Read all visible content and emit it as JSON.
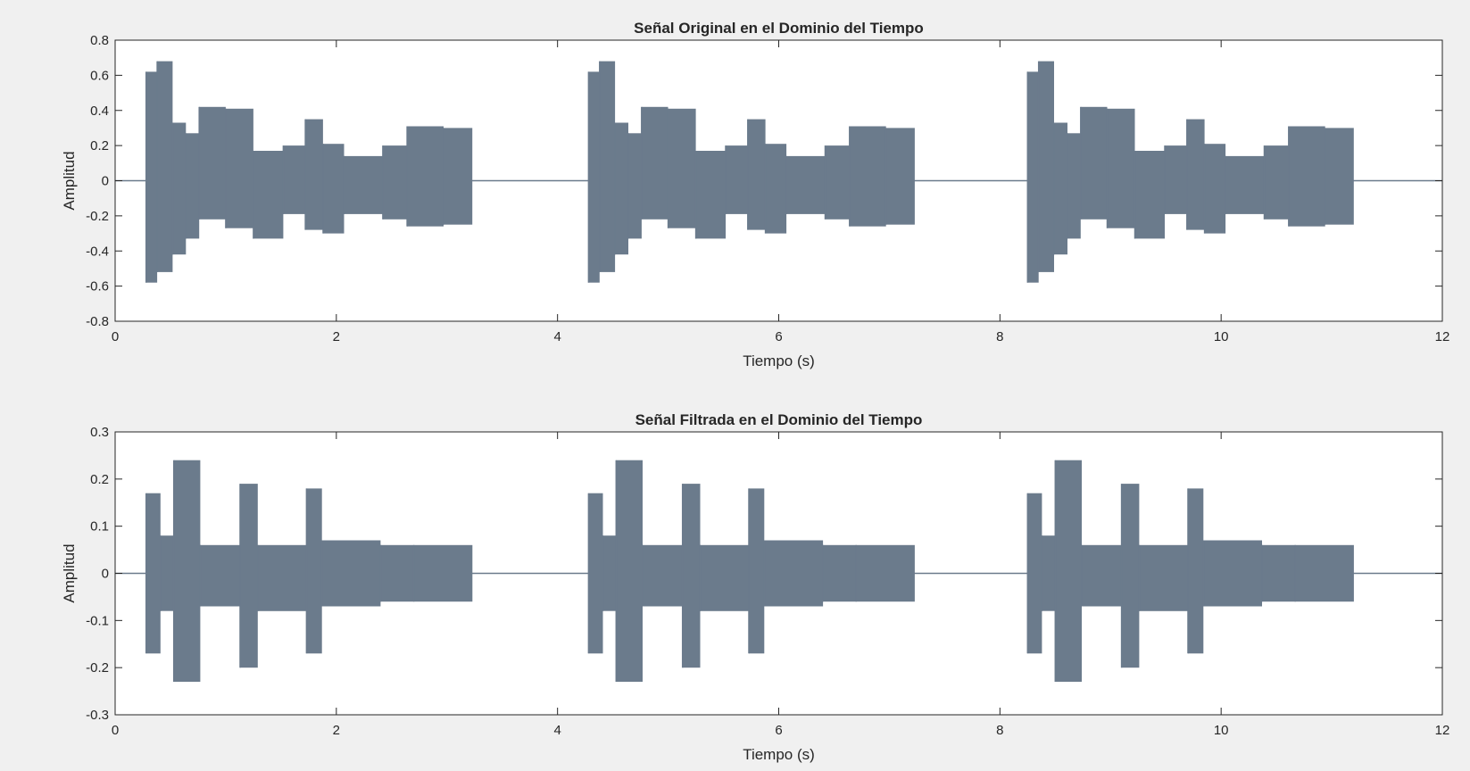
{
  "window": {
    "background": "#f0f0f0"
  },
  "chart_data": [
    {
      "type": "line",
      "title": "Señal Original en el Dominio del Tiempo",
      "xlabel": "Tiempo (s)",
      "ylabel": "Amplitud",
      "xlim": [
        0,
        12
      ],
      "ylim": [
        -0.8,
        0.8
      ],
      "xticks": [
        0,
        2,
        4,
        6,
        8,
        10,
        12
      ],
      "xtick_labels": [
        "0",
        "2",
        "4",
        "6",
        "8",
        "10",
        "12"
      ],
      "yticks": [
        0.8,
        0.6,
        0.4,
        0.2,
        0,
        -0.2,
        -0.4,
        -0.6,
        -0.8
      ],
      "ytick_labels": [
        "0.8",
        "0.6",
        "0.4",
        "0.2",
        "0",
        "-0.2",
        "-0.4",
        "-0.6",
        "-0.8"
      ],
      "grid": false,
      "line_color": "#6b7b8c",
      "series": [
        {
          "segments": [
            {
              "t": 0.28,
              "pos": 0.62,
              "neg": -0.58
            },
            {
              "t": 0.38,
              "pos": 0.68,
              "neg": -0.52
            },
            {
              "t": 0.52,
              "pos": 0.33,
              "neg": -0.42
            },
            {
              "t": 0.64,
              "pos": 0.27,
              "neg": -0.33
            },
            {
              "t": 0.76,
              "pos": 0.42,
              "neg": -0.22
            },
            {
              "t": 1.0,
              "pos": 0.41,
              "neg": -0.27
            },
            {
              "t": 1.25,
              "pos": 0.17,
              "neg": -0.33
            },
            {
              "t": 1.52,
              "pos": 0.2,
              "neg": -0.19
            },
            {
              "t": 1.72,
              "pos": 0.35,
              "neg": -0.28
            },
            {
              "t": 1.88,
              "pos": 0.21,
              "neg": -0.3
            },
            {
              "t": 2.07,
              "pos": 0.14,
              "neg": -0.19
            },
            {
              "t": 2.42,
              "pos": 0.2,
              "neg": -0.22
            },
            {
              "t": 2.64,
              "pos": 0.31,
              "neg": -0.26
            },
            {
              "t": 2.97,
              "pos": 0.3,
              "neg": -0.25
            },
            {
              "t": 3.23,
              "pos": 0.0,
              "neg": 0.0
            }
          ],
          "repeats_at": [
            0,
            4.0,
            7.97
          ]
        }
      ]
    },
    {
      "type": "line",
      "title": "Señal Filtrada en el Dominio del Tiempo",
      "xlabel": "Tiempo (s)",
      "ylabel": "Amplitud",
      "xlim": [
        0,
        12
      ],
      "ylim": [
        -0.3,
        0.3
      ],
      "xticks": [
        0,
        2,
        4,
        6,
        8,
        10,
        12
      ],
      "xtick_labels": [
        "0",
        "2",
        "4",
        "6",
        "8",
        "10",
        "12"
      ],
      "yticks": [
        0.3,
        0.2,
        0.1,
        0,
        -0.1,
        -0.2,
        -0.3
      ],
      "ytick_labels": [
        "0.3",
        "0.2",
        "0.1",
        "0",
        "-0.1",
        "-0.2",
        "-0.3"
      ],
      "grid": false,
      "line_color": "#6b7b8c",
      "series": [
        {
          "segments": [
            {
              "t": 0.28,
              "pos": 0.17,
              "neg": -0.17
            },
            {
              "t": 0.41,
              "pos": 0.08,
              "neg": -0.08
            },
            {
              "t": 0.53,
              "pos": 0.24,
              "neg": -0.23
            },
            {
              "t": 0.77,
              "pos": 0.06,
              "neg": -0.07
            },
            {
              "t": 1.13,
              "pos": 0.19,
              "neg": -0.2
            },
            {
              "t": 1.29,
              "pos": 0.06,
              "neg": -0.08
            },
            {
              "t": 1.73,
              "pos": 0.18,
              "neg": -0.17
            },
            {
              "t": 1.87,
              "pos": 0.07,
              "neg": -0.07
            },
            {
              "t": 2.4,
              "pos": 0.06,
              "neg": -0.06
            },
            {
              "t": 2.7,
              "pos": 0.06,
              "neg": -0.06
            },
            {
              "t": 3.23,
              "pos": 0.0,
              "neg": 0.0
            }
          ],
          "repeats_at": [
            0,
            4.0,
            7.97
          ]
        }
      ]
    }
  ]
}
